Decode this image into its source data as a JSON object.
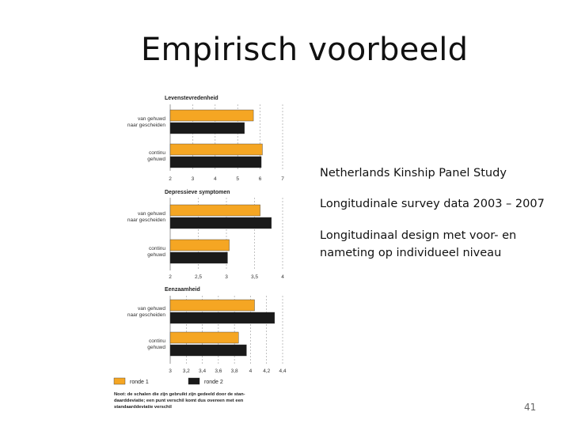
{
  "slide": {
    "title": "Empirisch voorbeeld",
    "page_number": "41"
  },
  "bullets": [
    "Netherlands Kinship Panel Study",
    "Longitudinale survey data 2003 – 2007",
    "Longitudinaal design met voor- en nameting op individueel niveau"
  ],
  "colors": {
    "ronde1": "#f5a623",
    "ronde2": "#1a1a1a"
  },
  "chart_data": [
    {
      "type": "bar",
      "orientation": "horizontal",
      "title": "Levenstevredenheid",
      "groups": [
        {
          "label_lines": [
            "van gehuwd",
            "naar gescheiden"
          ]
        },
        {
          "label_lines": [
            "continu",
            "gehuwd"
          ]
        }
      ],
      "series": [
        {
          "name": "ronde 1",
          "values": [
            5.7,
            6.1
          ]
        },
        {
          "name": "ronde 2",
          "values": [
            5.3,
            6.05
          ]
        }
      ],
      "xlim": [
        2,
        7
      ],
      "ticks": [
        "2",
        "3",
        "4",
        "5",
        "6",
        "7"
      ],
      "tick_values": [
        2,
        3,
        4,
        5,
        6,
        7
      ],
      "grid": true
    },
    {
      "type": "bar",
      "orientation": "horizontal",
      "title": "Depressieve symptomen",
      "groups": [
        {
          "label_lines": [
            "van gehuwd",
            "naar gescheiden"
          ]
        },
        {
          "label_lines": [
            "continu",
            "gehuwd"
          ]
        }
      ],
      "series": [
        {
          "name": "ronde 1",
          "values": [
            3.6,
            3.05
          ]
        },
        {
          "name": "ronde 2",
          "values": [
            3.8,
            3.02
          ]
        }
      ],
      "xlim": [
        2,
        4
      ],
      "ticks": [
        "2",
        "2,5",
        "3",
        "3,5",
        "4"
      ],
      "tick_values": [
        2,
        2.5,
        3,
        3.5,
        4
      ],
      "grid": true
    },
    {
      "type": "bar",
      "orientation": "horizontal",
      "title": "Eenzaamheid",
      "groups": [
        {
          "label_lines": [
            "van gehuwd",
            "naar gescheiden"
          ]
        },
        {
          "label_lines": [
            "continu",
            "gehuwd"
          ]
        }
      ],
      "series": [
        {
          "name": "ronde 1",
          "values": [
            4.05,
            3.85
          ]
        },
        {
          "name": "ronde 2",
          "values": [
            4.3,
            3.95
          ]
        }
      ],
      "xlim": [
        3,
        4.4
      ],
      "ticks": [
        "3",
        "3,2",
        "3,4",
        "3,6",
        "3,8",
        "4",
        "4,2",
        "4,4"
      ],
      "tick_values": [
        3,
        3.2,
        3.4,
        3.6,
        3.8,
        4,
        4.2,
        4.4
      ],
      "grid": true
    }
  ],
  "legend": {
    "items": [
      "ronde 1",
      "ronde 2"
    ],
    "position": "bottom"
  },
  "note_lines": [
    "Noot: de schalen die zijn gebruikt zijn gedeeld door de stan-",
    "daarddeviatie; een punt verschil komt dus overeen met een",
    "standaarddeviatie verschil"
  ]
}
